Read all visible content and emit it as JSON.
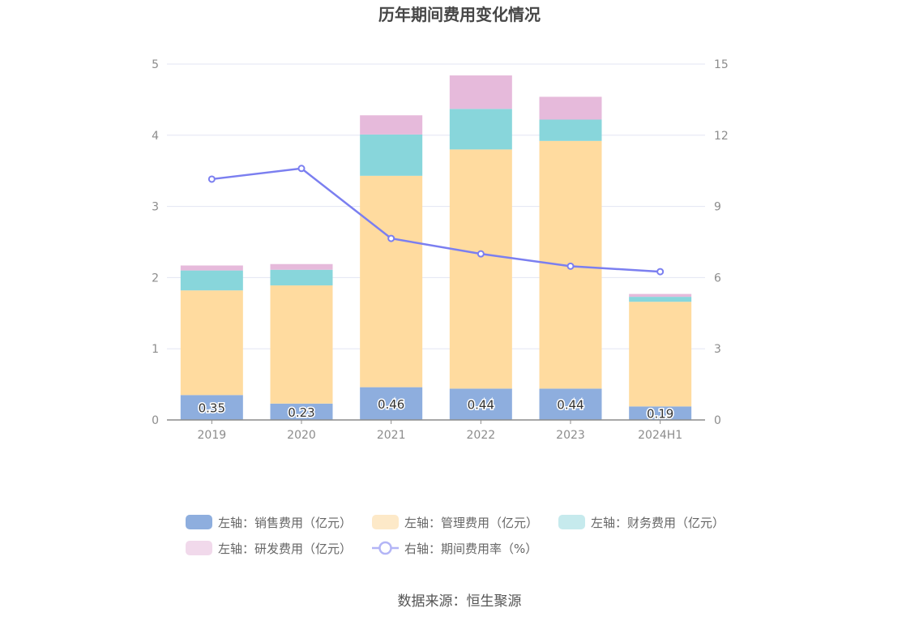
{
  "chart_data": {
    "type": "bar",
    "title": "历年期间费用变化情况",
    "categories": [
      "2019",
      "2020",
      "2021",
      "2022",
      "2023",
      "2024H1"
    ],
    "stacked": true,
    "y_left": {
      "min": 0,
      "max": 5,
      "ticks": [
        "0",
        "1",
        "2",
        "3",
        "4",
        "5"
      ]
    },
    "y_right": {
      "min": 0,
      "max": 15,
      "ticks": [
        "0",
        "3",
        "6",
        "9",
        "12",
        "15"
      ]
    },
    "grid": true,
    "legend_position": "bottom",
    "series": [
      {
        "name": "左轴：销售费用（亿元）",
        "type": "bar",
        "axis": "left",
        "color": "#8eaede",
        "values": [
          0.35,
          0.23,
          0.46,
          0.44,
          0.44,
          0.19
        ],
        "labels": [
          "0.35",
          "0.23",
          "0.46",
          "0.44",
          "0.44",
          "0.19"
        ]
      },
      {
        "name": "左轴：管理费用（亿元）",
        "type": "bar",
        "axis": "left",
        "color": "#ffdb9f",
        "values": [
          1.47,
          1.66,
          2.97,
          3.36,
          3.48,
          1.47
        ]
      },
      {
        "name": "左轴：财务费用（亿元）",
        "type": "bar",
        "axis": "left",
        "color": "#88d6db",
        "values": [
          0.28,
          0.22,
          0.58,
          0.57,
          0.3,
          0.07
        ]
      },
      {
        "name": "左轴：研发费用（亿元）",
        "type": "bar",
        "axis": "left",
        "color": "#e6badb",
        "values": [
          0.07,
          0.08,
          0.27,
          0.47,
          0.32,
          0.04
        ]
      },
      {
        "name": "右轴：期间费用率（%）",
        "type": "line",
        "axis": "right",
        "color": "#7b7ff0",
        "values": [
          10.15,
          10.6,
          7.65,
          7.0,
          6.48,
          6.25
        ]
      }
    ]
  },
  "legend_swatches": [
    "#8eaede",
    "#fde9c8",
    "#c6eaed",
    "#f1d9eb",
    "#b3b5f6"
  ],
  "source": "数据来源：恒生聚源"
}
